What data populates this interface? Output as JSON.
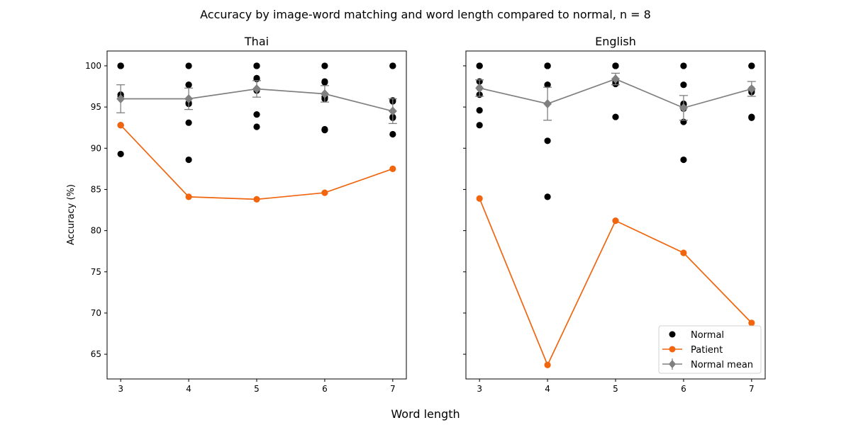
{
  "figure": {
    "suptitle": "Accuracy by image-word matching and word length compared to normal, n = 8",
    "supxlabel": "Word length"
  },
  "colors": {
    "normal": "#000000",
    "patient": "#f0650e",
    "normal_mean": "#808080"
  },
  "chart_data": [
    {
      "type": "line",
      "title": "Thai",
      "xlabel": "",
      "ylabel": "Accuracy (%)",
      "x": [
        3,
        4,
        5,
        6,
        7
      ],
      "xlim": [
        2.8,
        7.2
      ],
      "ylim": [
        62,
        101.8
      ],
      "yticks": [
        65,
        70,
        75,
        80,
        85,
        90,
        95,
        100
      ],
      "normal_points": [
        [
          100,
          100,
          100,
          96.5,
          96.3,
          92.8,
          89.3
        ],
        [
          100,
          97.7,
          97.7,
          95.5,
          95.4,
          93.1,
          88.6
        ],
        [
          100,
          100,
          98.5,
          98.4,
          97.0,
          94.1,
          92.6
        ],
        [
          100,
          98.1,
          98.0,
          96.2,
          96.0,
          92.3,
          92.2
        ],
        [
          100,
          100,
          95.8,
          95.7,
          93.8,
          91.7,
          93.7
        ]
      ],
      "series": [
        {
          "name": "Patient",
          "values": [
            92.8,
            84.1,
            83.8,
            84.6,
            87.5
          ]
        },
        {
          "name": "Normal mean",
          "values": [
            96.0,
            96.0,
            97.2,
            96.6,
            94.5
          ],
          "errors": [
            1.7,
            1.3,
            1.0,
            1.0,
            1.5
          ]
        }
      ],
      "grid": false
    },
    {
      "type": "line",
      "title": "English",
      "xlabel": "",
      "ylabel": "",
      "x": [
        3,
        4,
        5,
        6,
        7
      ],
      "xlim": [
        2.8,
        7.2
      ],
      "ylim": [
        62,
        101.8
      ],
      "yticks": [
        65,
        70,
        75,
        80,
        85,
        90,
        95,
        100
      ],
      "normal_points": [
        [
          100,
          100,
          98.1,
          96.5,
          94.6,
          92.8,
          97.3
        ],
        [
          100,
          100,
          100,
          97.7,
          97.7,
          90.9,
          84.1
        ],
        [
          100,
          100,
          100,
          98.0,
          97.8,
          93.8,
          98.3
        ],
        [
          100,
          97.7,
          95.4,
          95.3,
          93.2,
          88.6,
          94.8
        ],
        [
          100,
          100,
          97.0,
          96.8,
          93.8,
          93.7,
          97.2
        ]
      ],
      "series": [
        {
          "name": "Patient",
          "values": [
            83.9,
            63.7,
            81.2,
            77.3,
            68.8
          ]
        },
        {
          "name": "Normal mean",
          "values": [
            97.3,
            95.4,
            98.4,
            94.9,
            97.2
          ],
          "errors": [
            1.0,
            2.0,
            0.7,
            1.5,
            0.9
          ]
        }
      ],
      "grid": false,
      "legend": {
        "placement": "lower-right",
        "entries": [
          "Normal",
          "Patient",
          "Normal mean"
        ]
      }
    }
  ]
}
